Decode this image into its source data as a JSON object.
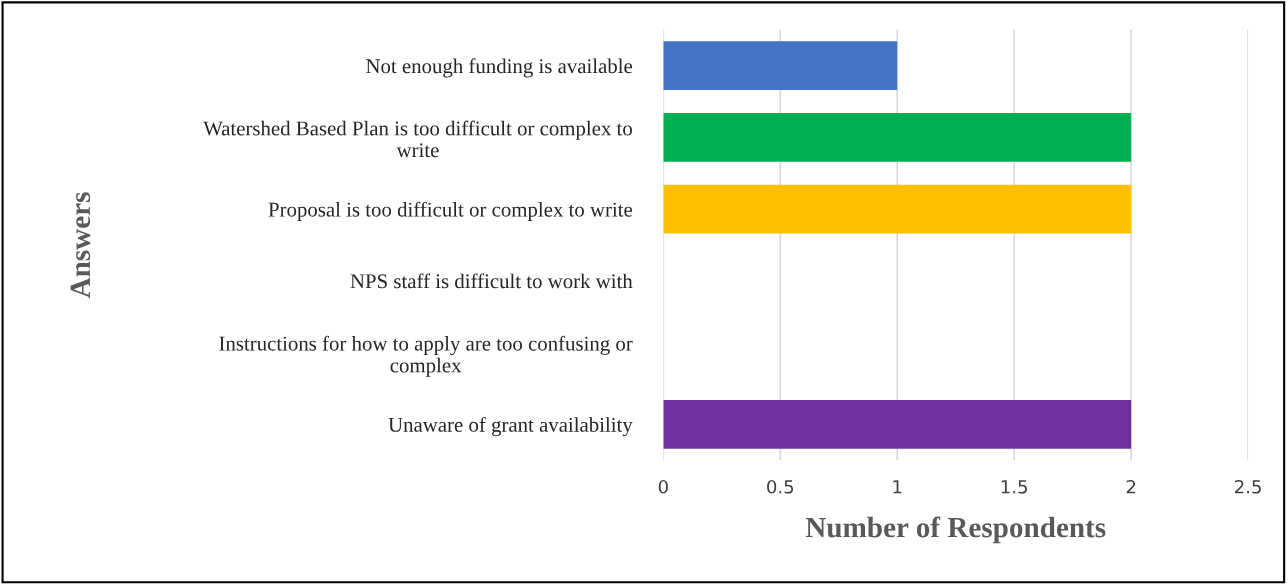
{
  "chart_data": {
    "type": "bar",
    "orientation": "horizontal",
    "categories": [
      "Not enough funding is available",
      "Watershed Based Plan is too difficult or complex to\nwrite",
      "Proposal is too difficult or complex to write",
      "NPS staff is difficult to work with",
      "Instructions for how to apply are too confusing or\ncomplex",
      "Unaware of grant availability"
    ],
    "values": [
      1,
      2,
      2,
      0,
      0,
      2
    ],
    "colors": [
      "#4472c4",
      "#00b050",
      "#ffc000",
      null,
      null,
      "#7030a0"
    ],
    "xlabel": "Number of Respondents",
    "ylabel": "Answers",
    "xlim": [
      0,
      2.5
    ],
    "xticks": [
      0,
      0.5,
      1,
      1.5,
      2,
      2.5
    ],
    "grid": "x",
    "legend": false
  }
}
